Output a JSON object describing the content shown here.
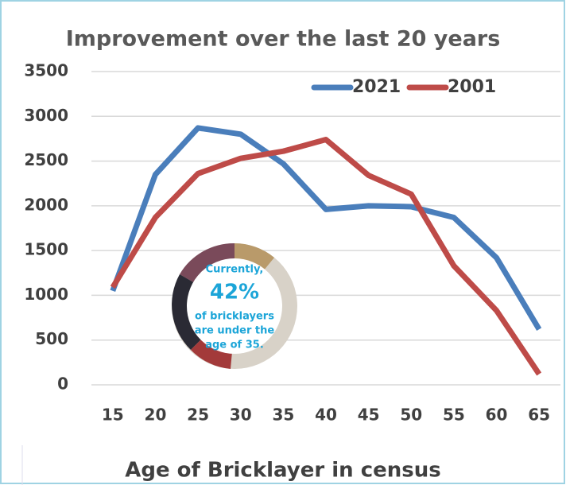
{
  "chart_data": {
    "type": "line",
    "title": "Improvement over the last 20 years",
    "x_label": "Age of Bricklayer in census",
    "categories": [
      "15",
      "20",
      "25",
      "30",
      "35",
      "40",
      "45",
      "50",
      "55",
      "60",
      "65"
    ],
    "series": [
      {
        "name": "2021",
        "color": "#4a7ebb",
        "values": [
          1050,
          2350,
          2870,
          2800,
          2470,
          1960,
          2000,
          1990,
          1870,
          1420,
          620
        ]
      },
      {
        "name": "2001",
        "color": "#be4b48",
        "values": [
          1090,
          1870,
          2360,
          2530,
          2610,
          2740,
          2340,
          2130,
          1330,
          830,
          120
        ]
      }
    ],
    "ylim": [
      0,
      3500
    ],
    "yticks": [
      0,
      500,
      1000,
      1500,
      2000,
      2500,
      3000,
      3500
    ],
    "grid": true,
    "legend": "top-right",
    "annotation": [
      "Currently,",
      "42%",
      "of bricklayers",
      "are under the",
      "age of 35."
    ]
  }
}
